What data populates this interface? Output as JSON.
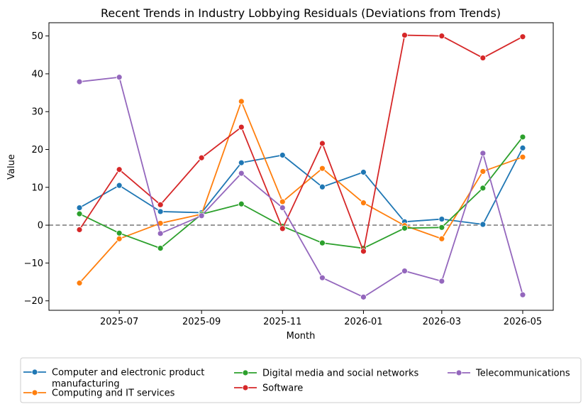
{
  "chart_data": {
    "type": "line",
    "title": "Recent Trends in Industry Lobbying Residuals (Deviations from Trends)",
    "xlabel": "Month",
    "ylabel": "Value",
    "x": [
      "2025-06",
      "2025-07",
      "2025-08",
      "2025-09",
      "2025-10",
      "2025-11",
      "2025-12",
      "2026-01",
      "2026-02",
      "2026-03",
      "2026-04",
      "2026-05"
    ],
    "x_ticks": [
      "2025-07",
      "2025-09",
      "2025-11",
      "2026-01",
      "2026-03",
      "2026-05"
    ],
    "x_range": [
      "2025-05-09",
      "2026-05-24"
    ],
    "y_ticks": [
      -20,
      -10,
      0,
      10,
      20,
      30,
      40,
      50
    ],
    "ylim": [
      -22.5,
      53.5
    ],
    "reference_line": {
      "y": 0,
      "style": "dashed",
      "color": "#808080"
    },
    "grid": false,
    "legend_position": "bottom",
    "series": [
      {
        "name": [
          "Computer and electronic product",
          "manufacturing"
        ],
        "color": "#1f77b4",
        "values": [
          4.6,
          10.5,
          3.6,
          3.3,
          16.5,
          18.5,
          10.1,
          14.0,
          0.9,
          1.6,
          0.2,
          20.4
        ]
      },
      {
        "name": [
          "Computing and IT services"
        ],
        "color": "#ff7f0e",
        "values": [
          -15.3,
          -3.6,
          0.5,
          2.9,
          32.7,
          6.2,
          15.0,
          5.9,
          -0.1,
          -3.6,
          14.2,
          18.0
        ]
      },
      {
        "name": [
          "Digital media and social networks"
        ],
        "color": "#2ca02c",
        "values": [
          3.0,
          -2.1,
          -6.1,
          2.9,
          5.6,
          -0.3,
          -4.7,
          -6.1,
          -0.8,
          -0.6,
          9.8,
          23.3
        ]
      },
      {
        "name": [
          "Software"
        ],
        "color": "#d62728",
        "values": [
          -1.2,
          14.7,
          5.4,
          17.8,
          25.9,
          -0.9,
          21.6,
          -6.9,
          50.2,
          50.0,
          44.2,
          49.8
        ]
      },
      {
        "name": [
          "Telecommunications"
        ],
        "color": "#9467bd",
        "values": [
          37.9,
          39.1,
          -2.2,
          2.5,
          13.7,
          4.6,
          -13.9,
          -19.0,
          -12.1,
          -14.8,
          19.0,
          -18.4
        ]
      }
    ]
  }
}
